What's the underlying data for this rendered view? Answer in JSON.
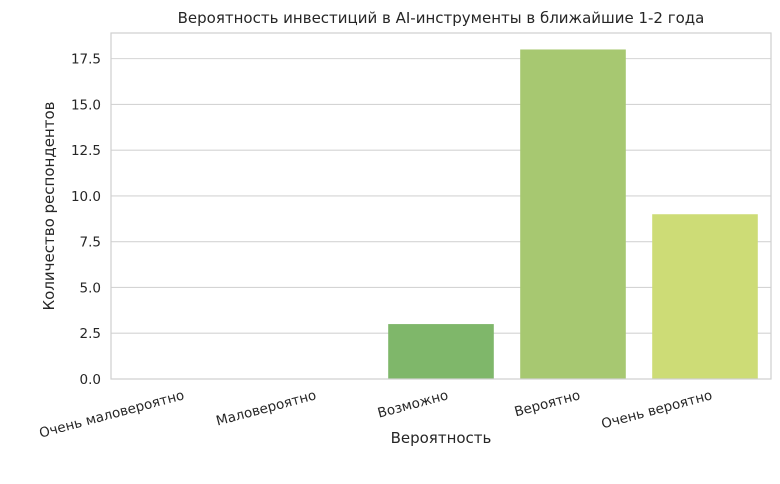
{
  "chart_data": {
    "type": "bar",
    "title": "Вероятность инвестиций в AI-инструменты в ближайшие 1-2 года",
    "xlabel": "Вероятность",
    "ylabel": "Количество респондентов",
    "categories": [
      "Очень маловероятно",
      "Маловероятно",
      "Возможно",
      "Вероятно",
      "Очень вероятно"
    ],
    "values": [
      0,
      0,
      3,
      18,
      9
    ],
    "ylim": [
      0,
      18.9
    ],
    "yticks": [
      0.0,
      2.5,
      5.0,
      7.5,
      10.0,
      12.5,
      15.0,
      17.5
    ],
    "ytick_labels": [
      "0.0",
      "2.5",
      "5.0",
      "7.5",
      "10.0",
      "12.5",
      "15.0",
      "17.5"
    ],
    "colors": [
      "#2e8b57",
      "#4f9e5a",
      "#7fb76a",
      "#a7c871",
      "#cddc76"
    ],
    "grid": true,
    "legend": "none"
  }
}
